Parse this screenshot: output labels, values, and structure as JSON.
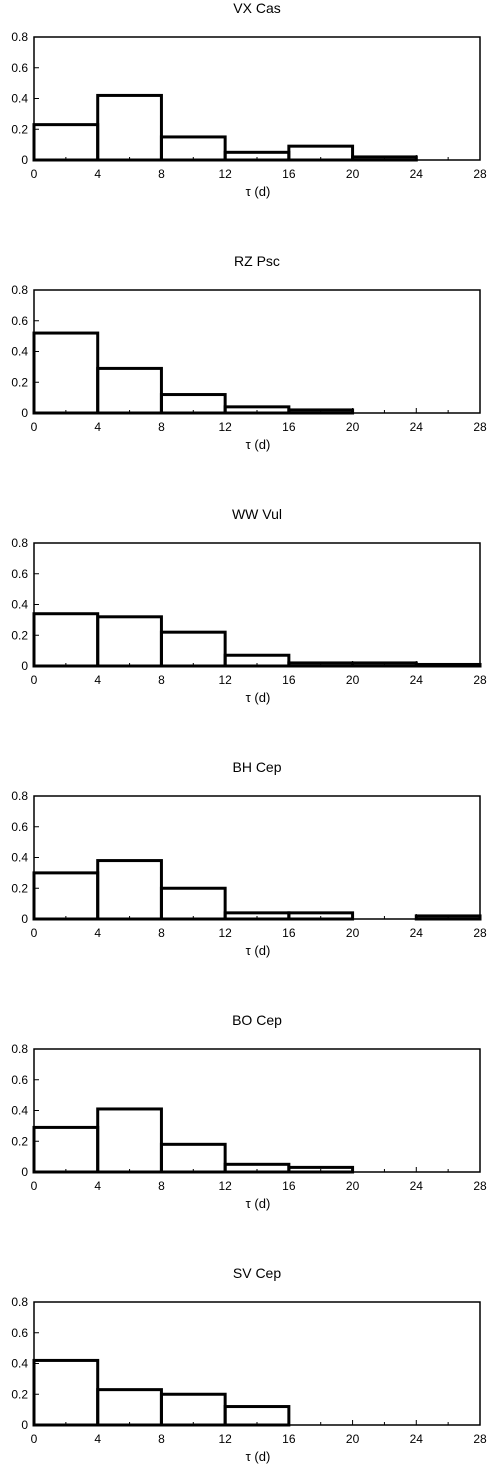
{
  "chart_data": [
    {
      "type": "bar",
      "title": "VX Cas",
      "xlabel": "τ (d)",
      "x_ticks": [
        "0",
        "4",
        "8",
        "12",
        "16",
        "20",
        "24",
        "28"
      ],
      "y_ticks": [
        "0",
        "0.2",
        "0.4",
        "0.6",
        "0.8"
      ],
      "xlim": [
        0,
        28
      ],
      "ylim": [
        0,
        0.8
      ],
      "bin_width": 4,
      "bin_starts": [
        0,
        4,
        8,
        12,
        16,
        20,
        24
      ],
      "values": [
        0.23,
        0.42,
        0.15,
        0.05,
        0.09,
        0.02,
        0.0
      ]
    },
    {
      "type": "bar",
      "title": "RZ Psc",
      "xlabel": "τ (d)",
      "x_ticks": [
        "0",
        "4",
        "8",
        "12",
        "16",
        "20",
        "24",
        "28"
      ],
      "y_ticks": [
        "0",
        "0.2",
        "0.4",
        "0.6",
        "0.8"
      ],
      "xlim": [
        0,
        28
      ],
      "ylim": [
        0,
        0.8
      ],
      "bin_width": 4,
      "bin_starts": [
        0,
        4,
        8,
        12,
        16,
        20,
        24
      ],
      "values": [
        0.52,
        0.29,
        0.12,
        0.04,
        0.02,
        0.0,
        0.0
      ]
    },
    {
      "type": "bar",
      "title": "WW Vul",
      "xlabel": "τ (d)",
      "x_ticks": [
        "0",
        "4",
        "8",
        "12",
        "16",
        "20",
        "24",
        "28"
      ],
      "y_ticks": [
        "0",
        "0.2",
        "0.4",
        "0.6",
        "0.8"
      ],
      "xlim": [
        0,
        28
      ],
      "ylim": [
        0,
        0.8
      ],
      "bin_width": 4,
      "bin_starts": [
        0,
        4,
        8,
        12,
        16,
        20,
        24
      ],
      "values": [
        0.34,
        0.32,
        0.22,
        0.07,
        0.02,
        0.02,
        0.01
      ]
    },
    {
      "type": "bar",
      "title": "BH Cep",
      "xlabel": "τ (d)",
      "x_ticks": [
        "0",
        "4",
        "8",
        "12",
        "16",
        "20",
        "24",
        "28"
      ],
      "y_ticks": [
        "0",
        "0.2",
        "0.4",
        "0.6",
        "0.8"
      ],
      "xlim": [
        0,
        28
      ],
      "ylim": [
        0,
        0.8
      ],
      "bin_width": 4,
      "bin_starts": [
        0,
        4,
        8,
        12,
        16,
        20,
        24
      ],
      "values": [
        0.3,
        0.38,
        0.2,
        0.04,
        0.04,
        0.0,
        0.02
      ]
    },
    {
      "type": "bar",
      "title": "BO Cep",
      "xlabel": "τ (d)",
      "x_ticks": [
        "0",
        "4",
        "8",
        "12",
        "16",
        "20",
        "24",
        "28"
      ],
      "y_ticks": [
        "0",
        "0.2",
        "0.4",
        "0.6",
        "0.8"
      ],
      "xlim": [
        0,
        28
      ],
      "ylim": [
        0,
        0.8
      ],
      "bin_width": 4,
      "bin_starts": [
        0,
        4,
        8,
        12,
        16,
        20,
        24
      ],
      "values": [
        0.29,
        0.41,
        0.18,
        0.05,
        0.03,
        0.0,
        0.0
      ]
    },
    {
      "type": "bar",
      "title": "SV Cep",
      "xlabel": "τ (d)",
      "x_ticks": [
        "0",
        "4",
        "8",
        "12",
        "16",
        "20",
        "24",
        "28"
      ],
      "y_ticks": [
        "0",
        "0.2",
        "0.4",
        "0.6",
        "0.8"
      ],
      "xlim": [
        0,
        28
      ],
      "ylim": [
        0,
        0.8
      ],
      "bin_width": 4,
      "bin_starts": [
        0,
        4,
        8,
        12,
        16,
        20,
        24
      ],
      "values": [
        0.42,
        0.23,
        0.2,
        0.12,
        0.0,
        0.0,
        0.0
      ]
    }
  ]
}
